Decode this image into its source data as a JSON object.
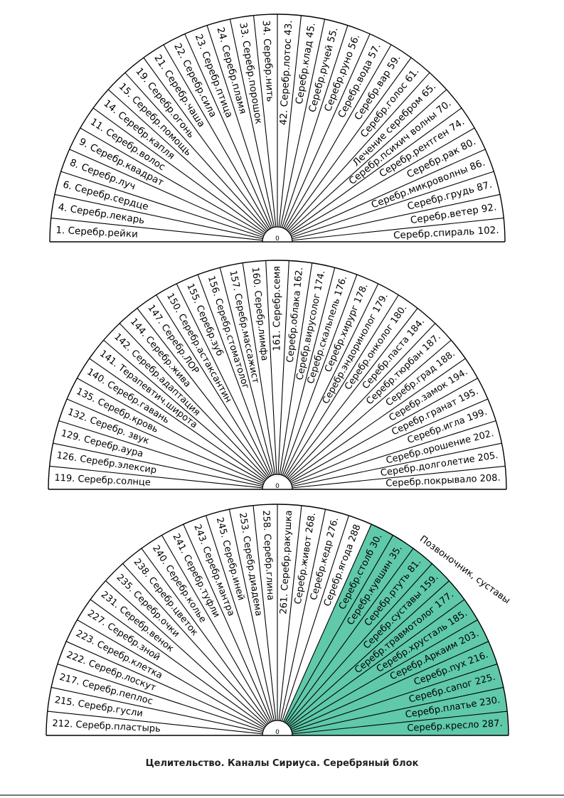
{
  "colors": {
    "highlight": "#5fc9aa",
    "line": "#000000",
    "background": "#ffffff"
  },
  "fans": [
    {
      "labels": [
        "1. Серебр.рейки",
        "4. Серебр.лекарь",
        "6. Серебр.сердце",
        "8. Серебр.луч",
        "9. Серебр.квадрат",
        "11. Серебр.волос",
        "14. Серебр.капля",
        "15. Серебр.помощь",
        "19. Серебр.огонь",
        "21. Серебр.чаша",
        "22. Серебр.сила",
        "23. Серебр.птица",
        "24. Серебр.пламя",
        "33. Серебр.порошок",
        "34. Серебр.нить",
        "42. Серебр.лотос 43.",
        "Серебр.клад 45.",
        "Серебр.ручей 55.",
        "Серебр.руно 56.",
        "Серебр.вода 57.",
        "Серебр.вар 59.",
        "Серебр.голос 61.",
        "Лечение серебром 65.",
        "Серебр.психич волны 70.",
        "Серебр.рентген 74.",
        "Серебр.рак 80.",
        "Серебр.микроволны 86.",
        "Серебр.грудь 87.",
        "Серебр.ветер 92.",
        "Серебр.спираль 102."
      ],
      "highlight_from": null
    },
    {
      "labels": [
        "119. Серебр.солнце",
        "126. Серебр.элексир",
        "129. Серебр.аура",
        "132. Серебр. звук",
        "135. Серебр.кровь",
        "140. Серебр.гавань",
        "141. Терапевтич.широта",
        "142. Серебр.адаптация",
        "144. Серебр.жива",
        "147. Серебр.ЛОР",
        "150. Серебр.астаксантин",
        "155. Серебр.зуб",
        "156. Серебр.стоматолог",
        "157. Серебр.массажист",
        "160. Серебр.лимфа",
        "161. Серебр.семя",
        "Серебр.облака 162.",
        "Серебр.вирусолог 174.",
        "Серебр.скальпель 176.",
        "Серебр.хирург 178.",
        "Серебр.эндоринолог 179.",
        "Серебр.онколог 180.",
        "Серебр.паста 184.",
        "Серебр.тюрбан 187.",
        "Серебр.град 188.",
        "Серебр.замок 194.",
        "Серебр.гранат 195.",
        "Серебр.игла 199.",
        "Серебр.орошение 202.",
        "Серебр.долголетие 205.",
        "Серебр.покрывало 208."
      ],
      "highlight_from": null
    },
    {
      "labels": [
        "212. Серебр.пластырь",
        "215. Серебр.гусли",
        "217. Серебр.пеплос",
        "222. Серебр.лоскут",
        "223. Серебр.клетка",
        "227. Серебр.зной",
        "231. Серебр.венок",
        "235. Серебр.очки",
        "238. Серебр.цветок",
        "240. Серебр.колье",
        "241. Серебр.туфли",
        "243. Серебр.мантра",
        "245. Серебр.иней",
        "253. Серебр.диадема",
        "258. Серебр.глина",
        "261. Серебр.ракушка",
        "Серебр.живот 268.",
        "Серебр.кедр 276.",
        "Серебр.ягода 288",
        "Серебр.столб 30.",
        "Серебр.кувшин 35.",
        "Серебр.ртуть 81.",
        "Серебр.суставы 159.",
        "Серебр.травмотолог 177.",
        "Серебр.хрусталь 185.",
        "Серебр.Аркаим 203.",
        "Серебр.пух 216.",
        "Серебр.сапог 225.",
        "Серебр.платье 230.",
        "Серебр.кресло 287."
      ],
      "highlight_from": 19,
      "side_label": "Позвоночник, суставы"
    }
  ],
  "hub_label": "0",
  "caption": "Целительство. Каналы Сириуса. Серебряный блок"
}
